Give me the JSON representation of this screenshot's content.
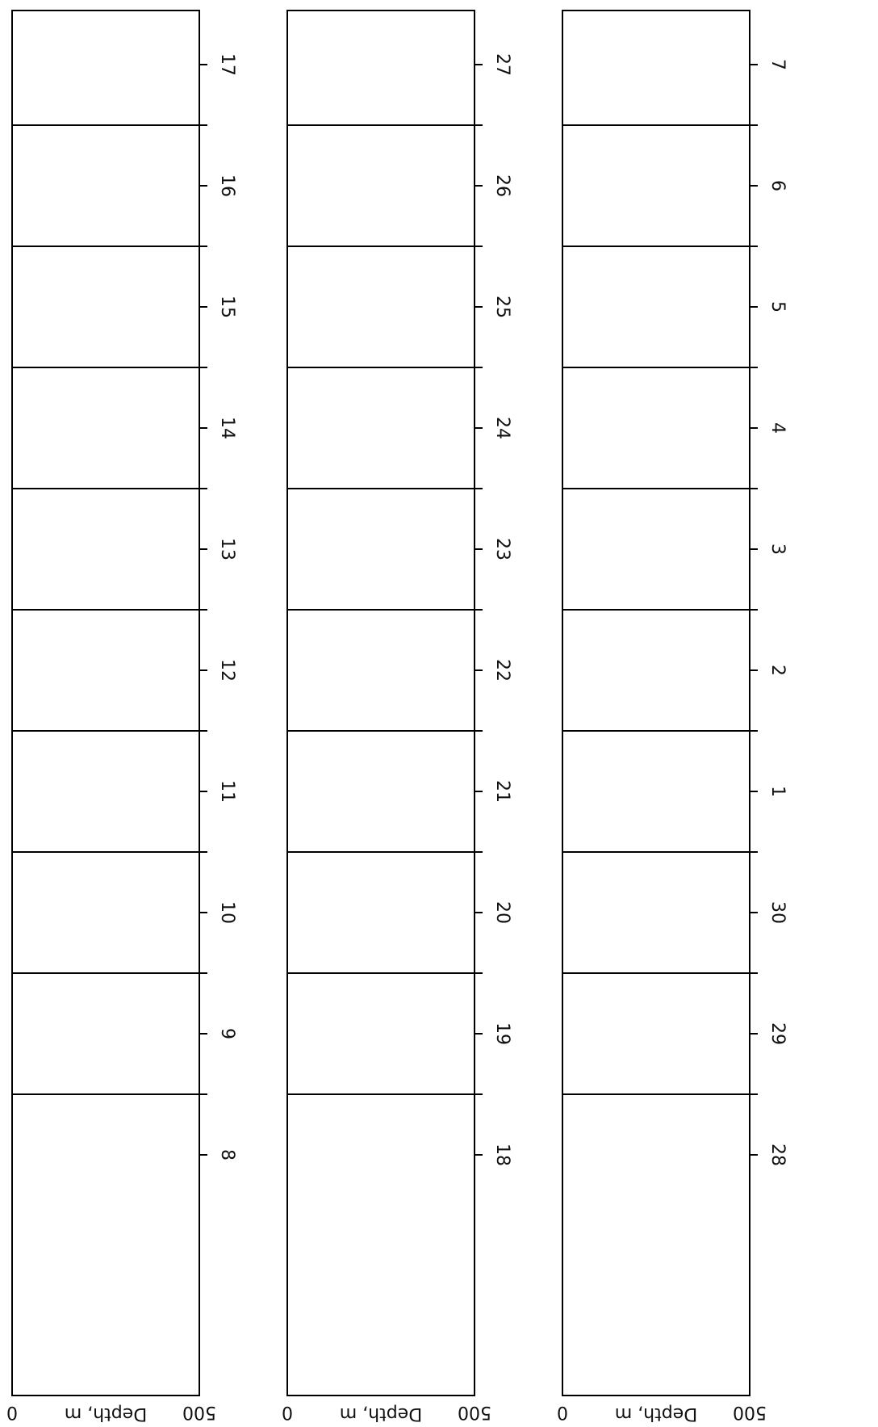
{
  "chart_data": [
    {
      "type": "echogram",
      "ylabel": "Depth, m",
      "ylim": [
        0,
        500
      ],
      "yticks": [
        0,
        500
      ],
      "categories": [
        "8",
        "9",
        "10",
        "11",
        "12",
        "13",
        "14",
        "15",
        "16",
        "17"
      ]
    },
    {
      "type": "echogram",
      "ylabel": "Depth, m",
      "ylim": [
        0,
        500
      ],
      "yticks": [
        0,
        500
      ],
      "categories": [
        "18",
        "19",
        "20",
        "21",
        "22",
        "23",
        "24",
        "25",
        "26",
        "27"
      ]
    },
    {
      "type": "echogram",
      "ylabel": "Depth, m",
      "ylim": [
        0,
        500
      ],
      "yticks": [
        0,
        500
      ],
      "categories": [
        "28",
        "29",
        "30",
        "1",
        "2",
        "3",
        "4",
        "5",
        "6",
        "7"
      ]
    }
  ]
}
